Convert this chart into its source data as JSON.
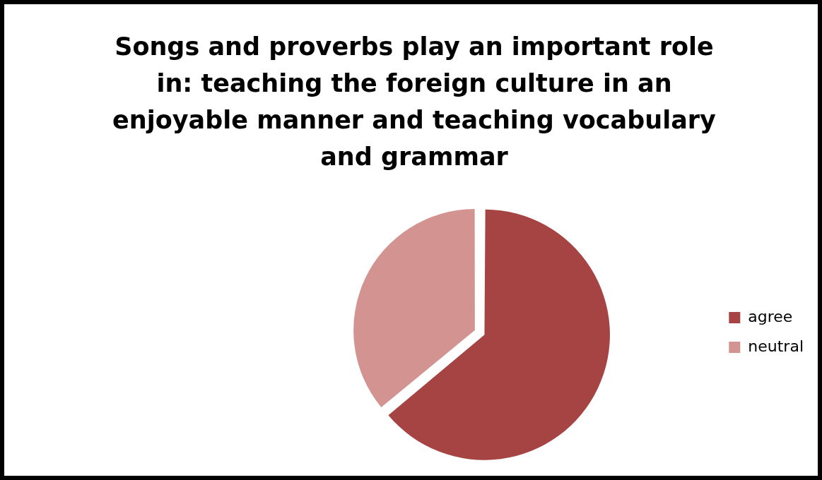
{
  "chart_data": {
    "type": "pie",
    "title": "Songs and proverbs play an important role in: teaching the foreign culture in an enjoyable manner and teaching vocabulary and grammar",
    "categories": [
      "agree",
      "neutral"
    ],
    "values": [
      64,
      36
    ],
    "colors": [
      "#a64444",
      "#d39391"
    ],
    "legend": "right"
  }
}
